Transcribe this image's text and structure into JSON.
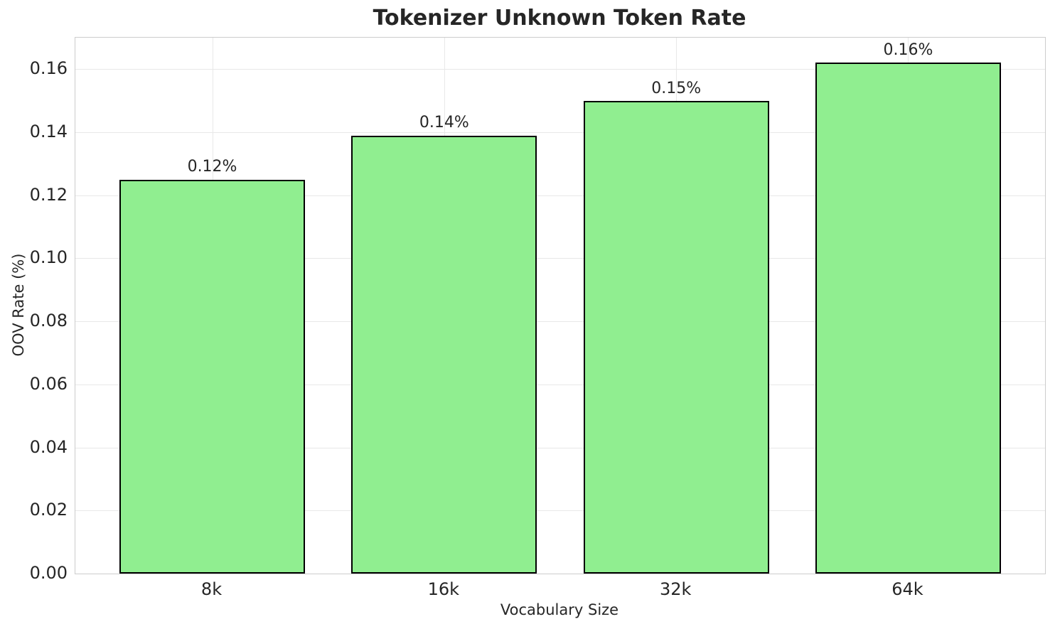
{
  "chart_data": {
    "type": "bar",
    "title": "Tokenizer Unknown Token Rate",
    "xlabel": "Vocabulary Size",
    "ylabel": "OOV Rate (%)",
    "categories": [
      "8k",
      "16k",
      "32k",
      "64k"
    ],
    "values": [
      0.125,
      0.139,
      0.15,
      0.162
    ],
    "bar_labels": [
      "0.12%",
      "0.14%",
      "0.15%",
      "0.16%"
    ],
    "yticks": [
      0.0,
      0.02,
      0.04,
      0.06,
      0.08,
      0.1,
      0.12,
      0.14,
      0.16
    ],
    "ytick_labels": [
      "0.00",
      "0.02",
      "0.04",
      "0.06",
      "0.08",
      "0.10",
      "0.12",
      "0.14",
      "0.16"
    ],
    "ylim": [
      0,
      0.17
    ],
    "xlim": [
      -0.59,
      3.59
    ],
    "bar_width": 0.8,
    "grid": true,
    "legend": null,
    "colors": {
      "bar_fill": "#90EE90",
      "bar_edge": "#000000",
      "gridline": "#e8e8e8",
      "spine": "#cccccc",
      "text": "#262626",
      "background": "#ffffff"
    }
  }
}
